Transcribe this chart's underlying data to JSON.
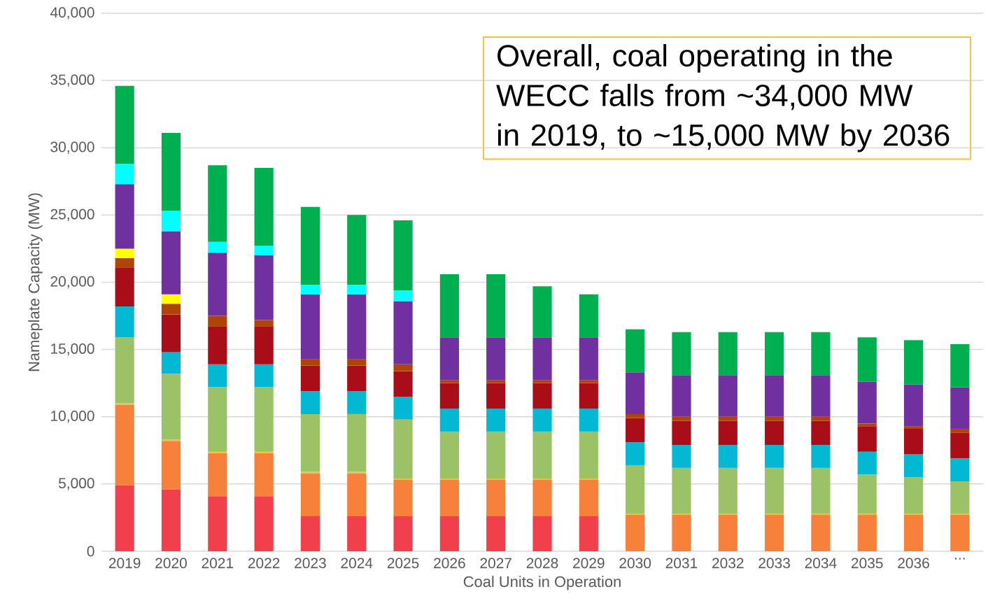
{
  "chart_data": {
    "type": "bar",
    "stacked": true,
    "grid": "y",
    "xlabel": "Coal Units in Operation",
    "ylabel": "Nameplate Capacity (MW)",
    "annotations": [
      "Overall, coal operating in the WECC falls from ~34,000 MW in 2019, to ~15,000 MW by 2036"
    ],
    "categories": [
      "2019",
      "2020",
      "2021",
      "2022",
      "2023",
      "2024",
      "2025",
      "2026",
      "2027",
      "2028",
      "2029",
      "2030",
      "2031",
      "2032",
      "2033",
      "2034",
      "2035",
      "2036",
      "..."
    ],
    "ylim": [
      0,
      40000
    ],
    "yticks": [
      0,
      {
        "value": 5000,
        "label": "5,000"
      },
      {
        "value": 10000,
        "label": "10,000"
      },
      {
        "value": 15000,
        "label": "15,000"
      },
      {
        "value": 20000,
        "label": "20,000"
      },
      {
        "value": 25000,
        "label": "25,000"
      },
      {
        "value": 30000,
        "label": "30,000"
      },
      {
        "value": 35000,
        "label": "35,000"
      },
      {
        "value": 40000,
        "label": "40,000"
      }
    ],
    "series": [
      {
        "color": "#f23f4c",
        "values": [
          4900,
          4600,
          4100,
          4100,
          2600,
          2600,
          2600,
          2600,
          2600,
          2600,
          2600,
          null,
          null,
          null,
          null,
          null,
          null,
          null,
          null
        ]
      },
      {
        "color": "#f7803a",
        "values": [
          6000,
          3600,
          3200,
          3200,
          3200,
          3200,
          2700,
          2700,
          2700,
          2700,
          2700,
          2700,
          2700,
          2700,
          2700,
          2700,
          2700,
          2700,
          2700
        ]
      },
      {
        "color": "#f0c030",
        "values": [
          100,
          100,
          100,
          100,
          100,
          100,
          100,
          100,
          100,
          100,
          100,
          100,
          100,
          100,
          100,
          100,
          100,
          100,
          100
        ]
      },
      {
        "color": "#9bc267",
        "values": [
          4900,
          4900,
          4800,
          4800,
          4300,
          4300,
          4400,
          3500,
          3500,
          3500,
          3500,
          3600,
          3400,
          3400,
          3400,
          3400,
          2900,
          2700,
          2400
        ]
      },
      {
        "color": "#03b8d3",
        "values": [
          2300,
          1600,
          1700,
          1700,
          1700,
          1700,
          1700,
          1700,
          1700,
          1700,
          1700,
          1700,
          1700,
          1700,
          1700,
          1700,
          1700,
          1700,
          1700
        ]
      },
      {
        "color": "#a90d18",
        "values": [
          2900,
          2800,
          2800,
          2800,
          1900,
          1900,
          1900,
          1900,
          1900,
          1900,
          1900,
          1800,
          1800,
          1800,
          1800,
          1800,
          1900,
          1900,
          1900
        ]
      },
      {
        "color": "#b04407",
        "values": [
          700,
          800,
          800,
          500,
          500,
          500,
          500,
          200,
          200,
          200,
          200,
          300,
          300,
          300,
          300,
          300,
          200,
          200,
          300
        ]
      },
      {
        "color": "#ffff00",
        "values": [
          700,
          700,
          null,
          null,
          null,
          null,
          null,
          null,
          null,
          null,
          null,
          null,
          null,
          null,
          null,
          null,
          null,
          null,
          null
        ]
      },
      {
        "color": "#7030a0",
        "values": [
          4800,
          4700,
          4700,
          4800,
          4800,
          4800,
          4700,
          3200,
          3200,
          3200,
          3200,
          3100,
          3100,
          3100,
          3100,
          3100,
          3100,
          3100,
          3100
        ]
      },
      {
        "color": "#00ffff",
        "values": [
          1500,
          1500,
          800,
          700,
          700,
          700,
          800,
          null,
          null,
          null,
          null,
          null,
          null,
          null,
          null,
          null,
          null,
          null,
          null
        ]
      },
      {
        "color": "#00b050",
        "values": [
          5800,
          5800,
          5700,
          5800,
          5800,
          5200,
          5200,
          4700,
          4700,
          3800,
          3200,
          3200,
          3200,
          3200,
          3200,
          3200,
          3300,
          3300,
          3200
        ]
      }
    ]
  }
}
